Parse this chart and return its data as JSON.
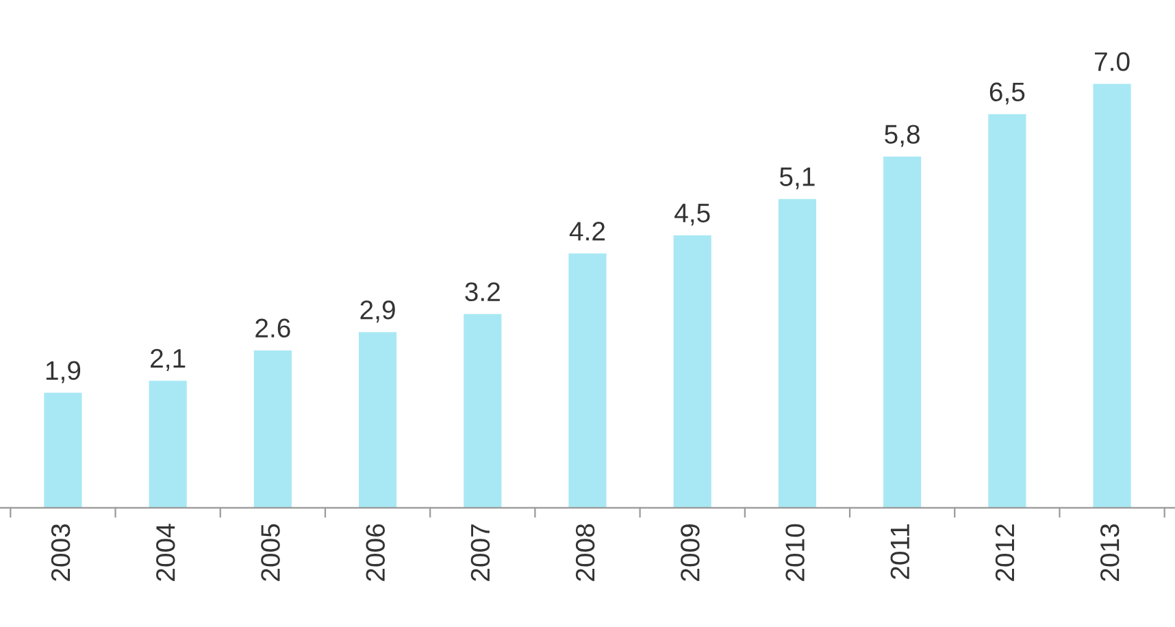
{
  "chart_data": {
    "type": "bar",
    "categories": [
      "2003",
      "2004",
      "2005",
      "2006",
      "2007",
      "2008",
      "2009",
      "2010",
      "2011",
      "2012",
      "2013"
    ],
    "values": [
      1.9,
      2.1,
      2.6,
      2.9,
      3.2,
      4.2,
      4.5,
      5.1,
      5.8,
      6.5,
      7.0
    ],
    "value_labels": [
      "1,9",
      "2,1",
      "2.6",
      "2,9",
      "3.2",
      "4.2",
      "4,5",
      "5,1",
      "5,8",
      "6,5",
      "7.0"
    ],
    "color": "#a8e8f4",
    "grid": false,
    "legend": false
  }
}
